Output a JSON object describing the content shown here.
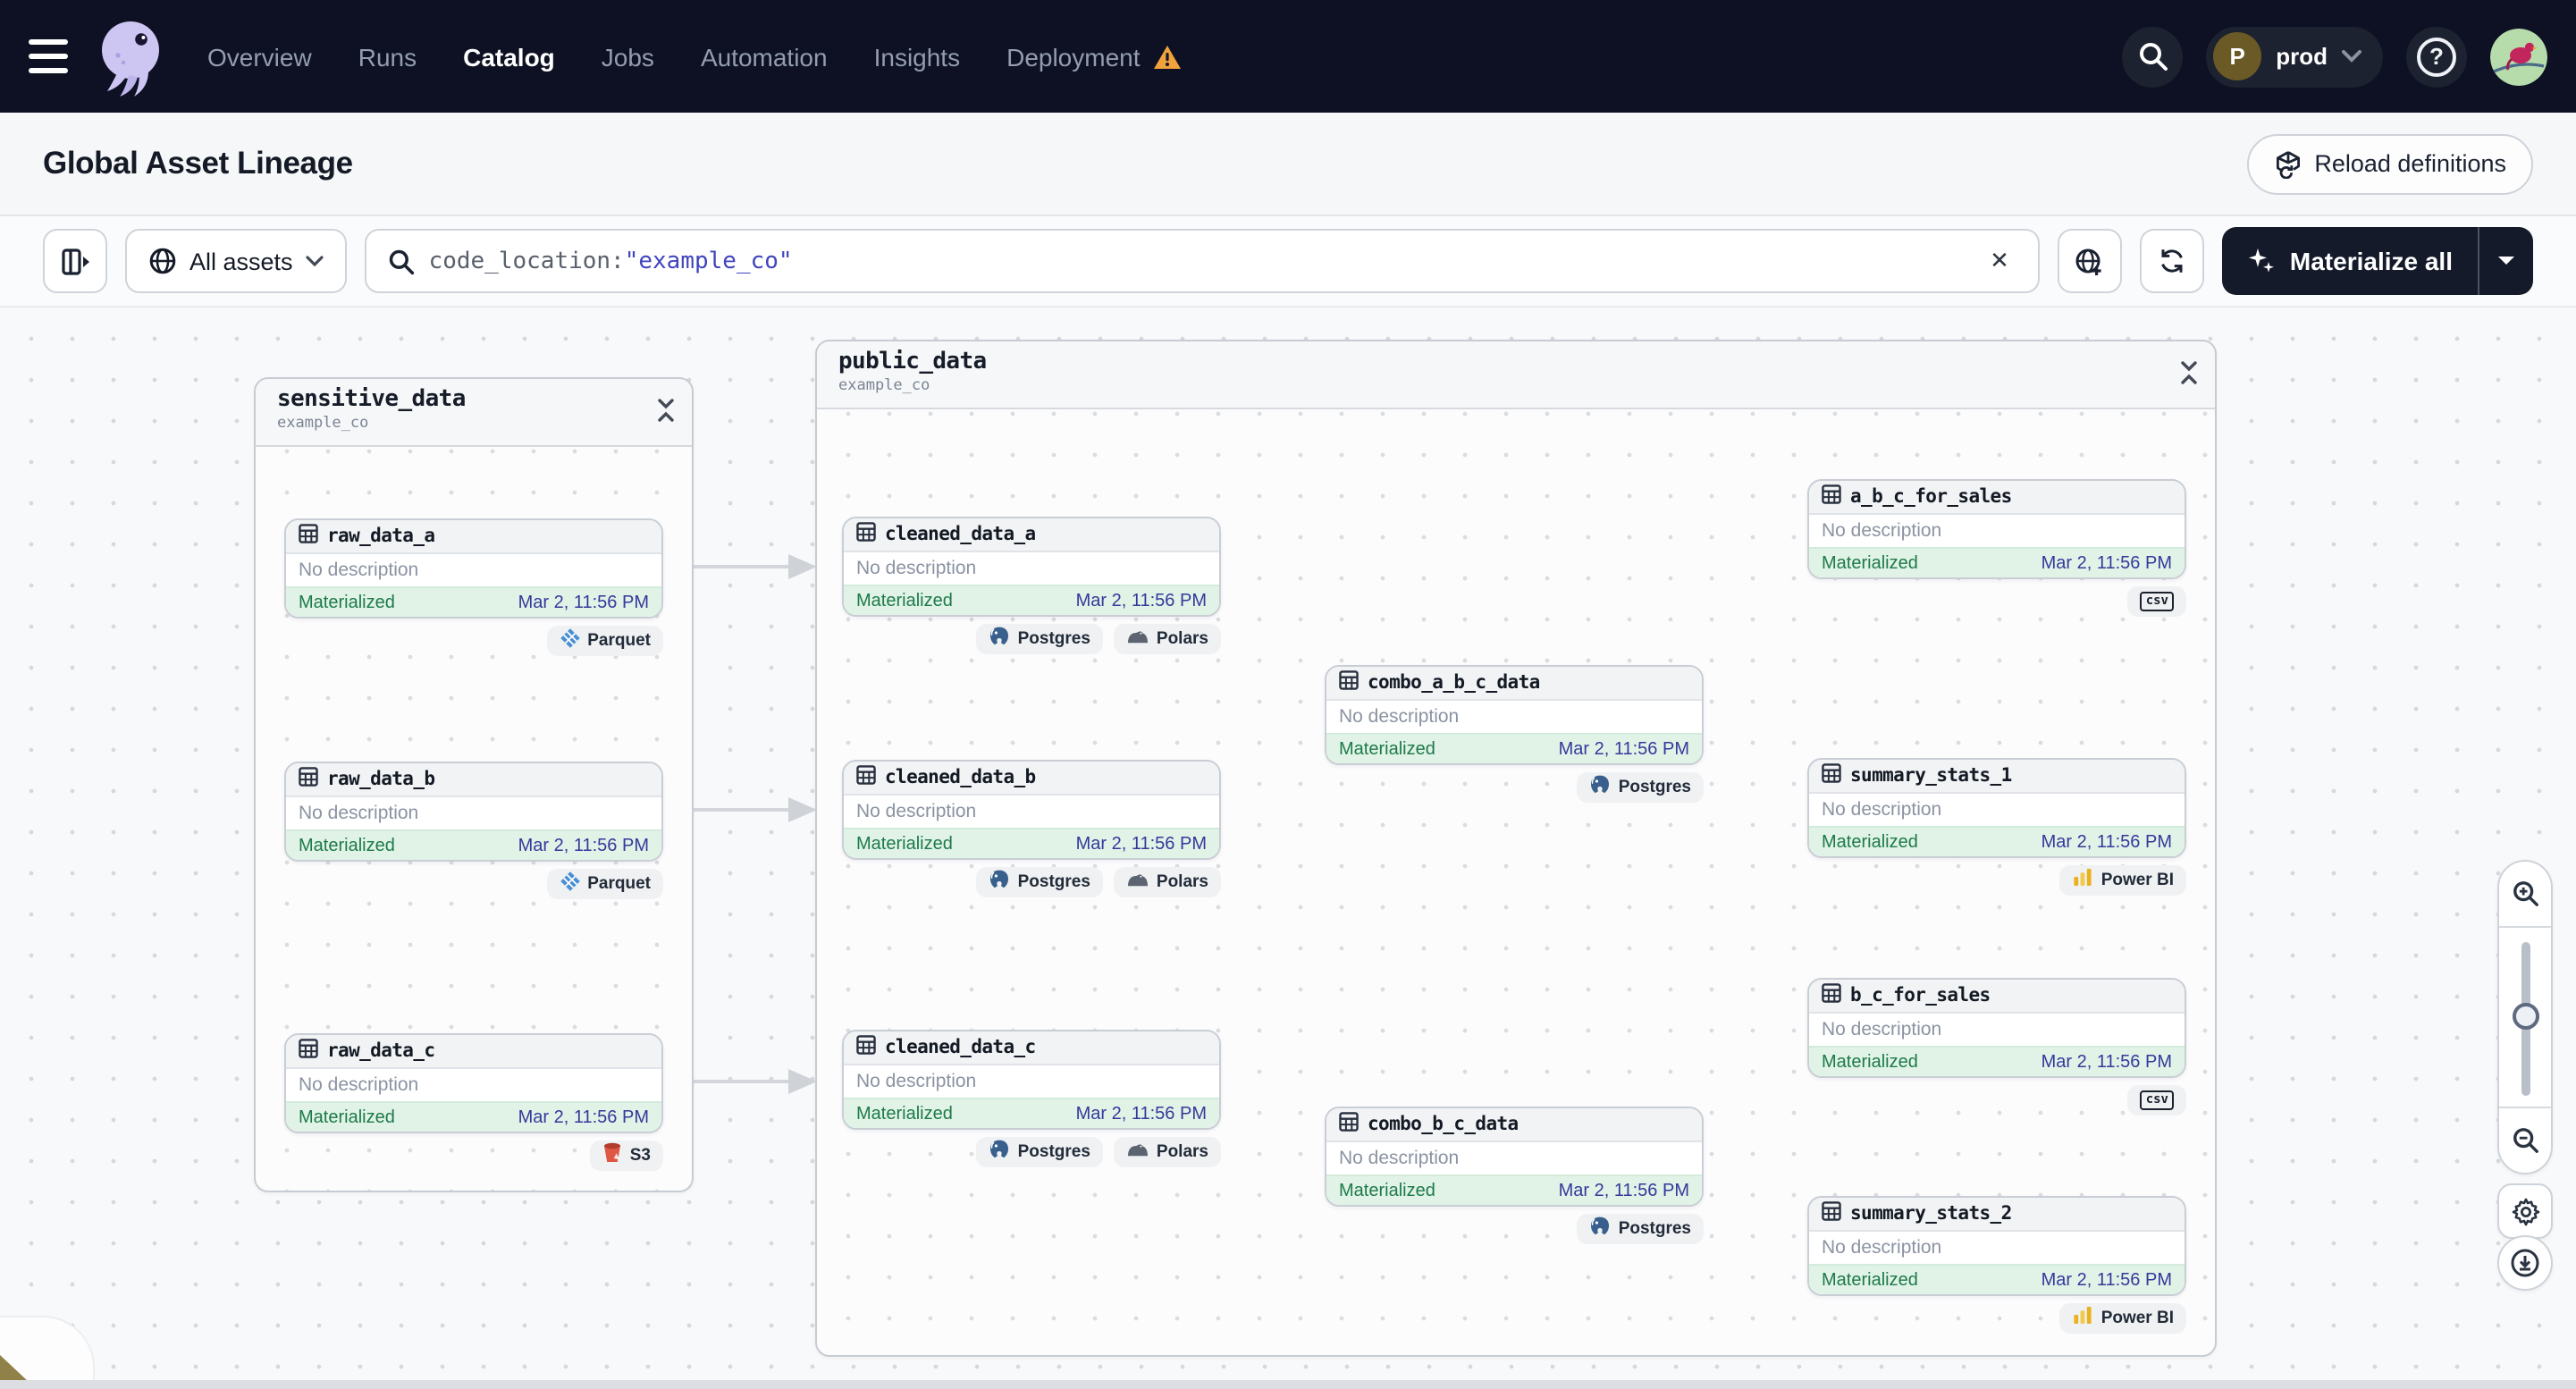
{
  "nav": {
    "items": [
      {
        "label": "Overview",
        "active": false,
        "warning": false
      },
      {
        "label": "Runs",
        "active": false,
        "warning": false
      },
      {
        "label": "Catalog",
        "active": true,
        "warning": false
      },
      {
        "label": "Jobs",
        "active": false,
        "warning": false
      },
      {
        "label": "Automation",
        "active": false,
        "warning": false
      },
      {
        "label": "Insights",
        "active": false,
        "warning": false
      },
      {
        "label": "Deployment",
        "active": false,
        "warning": true
      }
    ],
    "deployment_switcher": {
      "initial": "P",
      "name": "prod"
    },
    "icons": [
      "menu-icon",
      "dagster-logo",
      "search-icon",
      "help-icon",
      "user-avatar"
    ]
  },
  "header": {
    "title": "Global Asset Lineage",
    "reload_button": "Reload definitions"
  },
  "toolbar": {
    "scope_label": "All assets",
    "search_prefix": "code_location:",
    "search_value": "\"example_co\"",
    "materialize_label": "Materialize all",
    "icons": [
      "panel-toggle-icon",
      "globe-icon",
      "search-icon",
      "clear-icon",
      "globe-add-icon",
      "refresh-icon",
      "sparkle-icon",
      "caret-down-icon"
    ]
  },
  "graph": {
    "groups": [
      {
        "name": "sensitive_data",
        "location": "example_co",
        "nodes": [
          {
            "name": "raw_data_a",
            "description": "No description",
            "status": "Materialized",
            "timestamp": "Mar 2, 11:56 PM",
            "tags": [
              {
                "label": "Parquet",
                "icon": "parquet-icon"
              }
            ]
          },
          {
            "name": "raw_data_b",
            "description": "No description",
            "status": "Materialized",
            "timestamp": "Mar 2, 11:56 PM",
            "tags": [
              {
                "label": "Parquet",
                "icon": "parquet-icon"
              }
            ]
          },
          {
            "name": "raw_data_c",
            "description": "No description",
            "status": "Materialized",
            "timestamp": "Mar 2, 11:56 PM",
            "tags": [
              {
                "label": "S3",
                "icon": "s3-icon"
              }
            ]
          }
        ]
      },
      {
        "name": "public_data",
        "location": "example_co",
        "nodes": [
          {
            "name": "cleaned_data_a",
            "description": "No description",
            "status": "Materialized",
            "timestamp": "Mar 2, 11:56 PM",
            "tags": [
              {
                "label": "Postgres",
                "icon": "postgres-icon"
              },
              {
                "label": "Polars",
                "icon": "polars-icon"
              }
            ]
          },
          {
            "name": "cleaned_data_b",
            "description": "No description",
            "status": "Materialized",
            "timestamp": "Mar 2, 11:56 PM",
            "tags": [
              {
                "label": "Postgres",
                "icon": "postgres-icon"
              },
              {
                "label": "Polars",
                "icon": "polars-icon"
              }
            ]
          },
          {
            "name": "cleaned_data_c",
            "description": "No description",
            "status": "Materialized",
            "timestamp": "Mar 2, 11:56 PM",
            "tags": [
              {
                "label": "Postgres",
                "icon": "postgres-icon"
              },
              {
                "label": "Polars",
                "icon": "polars-icon"
              }
            ]
          },
          {
            "name": "combo_a_b_c_data",
            "description": "No description",
            "status": "Materialized",
            "timestamp": "Mar 2, 11:56 PM",
            "tags": [
              {
                "label": "Postgres",
                "icon": "postgres-icon"
              }
            ]
          },
          {
            "name": "combo_b_c_data",
            "description": "No description",
            "status": "Materialized",
            "timestamp": "Mar 2, 11:56 PM",
            "tags": [
              {
                "label": "Postgres",
                "icon": "postgres-icon"
              }
            ]
          },
          {
            "name": "a_b_c_for_sales",
            "description": "No description",
            "status": "Materialized",
            "timestamp": "Mar 2, 11:56 PM",
            "tags": [
              {
                "label": "csv",
                "icon": "csv-icon",
                "boxed": true
              }
            ]
          },
          {
            "name": "summary_stats_1",
            "description": "No description",
            "status": "Materialized",
            "timestamp": "Mar 2, 11:56 PM",
            "tags": [
              {
                "label": "Power BI",
                "icon": "powerbi-icon"
              }
            ]
          },
          {
            "name": "b_c_for_sales",
            "description": "No description",
            "status": "Materialized",
            "timestamp": "Mar 2, 11:56 PM",
            "tags": [
              {
                "label": "csv",
                "icon": "csv-icon",
                "boxed": true
              }
            ]
          },
          {
            "name": "summary_stats_2",
            "description": "No description",
            "status": "Materialized",
            "timestamp": "Mar 2, 11:56 PM",
            "tags": [
              {
                "label": "Power BI",
                "icon": "powerbi-icon"
              }
            ]
          }
        ]
      }
    ],
    "controls": [
      "zoom-in",
      "zoom-slider",
      "zoom-out",
      "settings",
      "download"
    ]
  },
  "colors": {
    "nav_bg": "#0d1123",
    "accent_dark": "#141a2a",
    "status_green": "#1d7a4a",
    "status_green_bg": "#e1f3e7",
    "timestamp_indigo": "#35399b",
    "query_value_indigo": "#4045bc",
    "warning_orange": "#f0a23c",
    "edge_gray": "#d3d6db"
  }
}
